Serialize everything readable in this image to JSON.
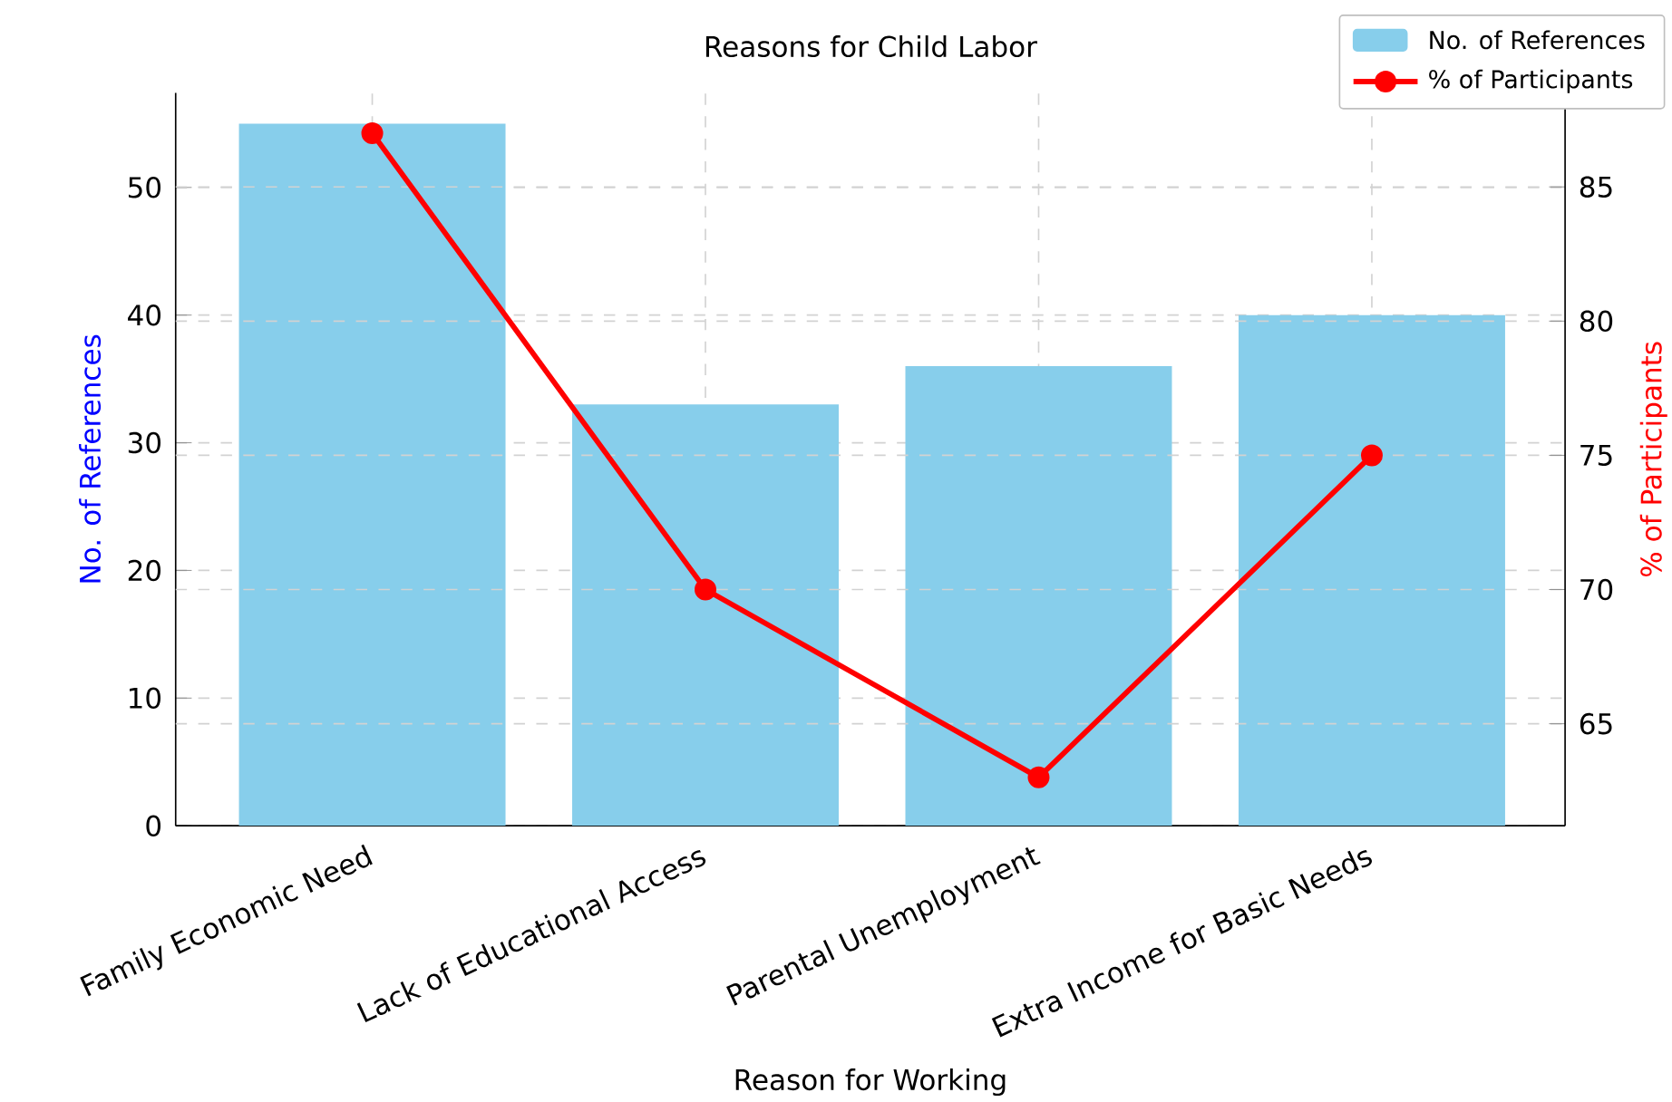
{
  "chart_data": {
    "type": "bar",
    "title": "Reasons for Child Labor",
    "xlabel": "Reason for Working",
    "ylabel": "No. of References",
    "y2label": "% of Participants",
    "categories": [
      "Family Economic Need",
      "Lack of Educational Access",
      "Parental Unemployment",
      "Extra Income for Basic Needs"
    ],
    "series": [
      {
        "name": "No. of References",
        "color": "#87ceeb",
        "values": [
          55,
          33,
          36,
          40
        ]
      },
      {
        "name": "% of Participants",
        "type": "line",
        "axis": "y2",
        "color": "#ff0000",
        "marker": "circle",
        "values": [
          87,
          70,
          63,
          75
        ]
      }
    ],
    "ylim": [
      0,
      57.4
    ],
    "yticks": [
      0,
      10,
      20,
      30,
      40,
      50
    ],
    "y2lim": [
      61.2,
      88.5
    ],
    "y2ticks": [
      65,
      70,
      75,
      80,
      85
    ],
    "grid": true,
    "legend": "top right"
  }
}
